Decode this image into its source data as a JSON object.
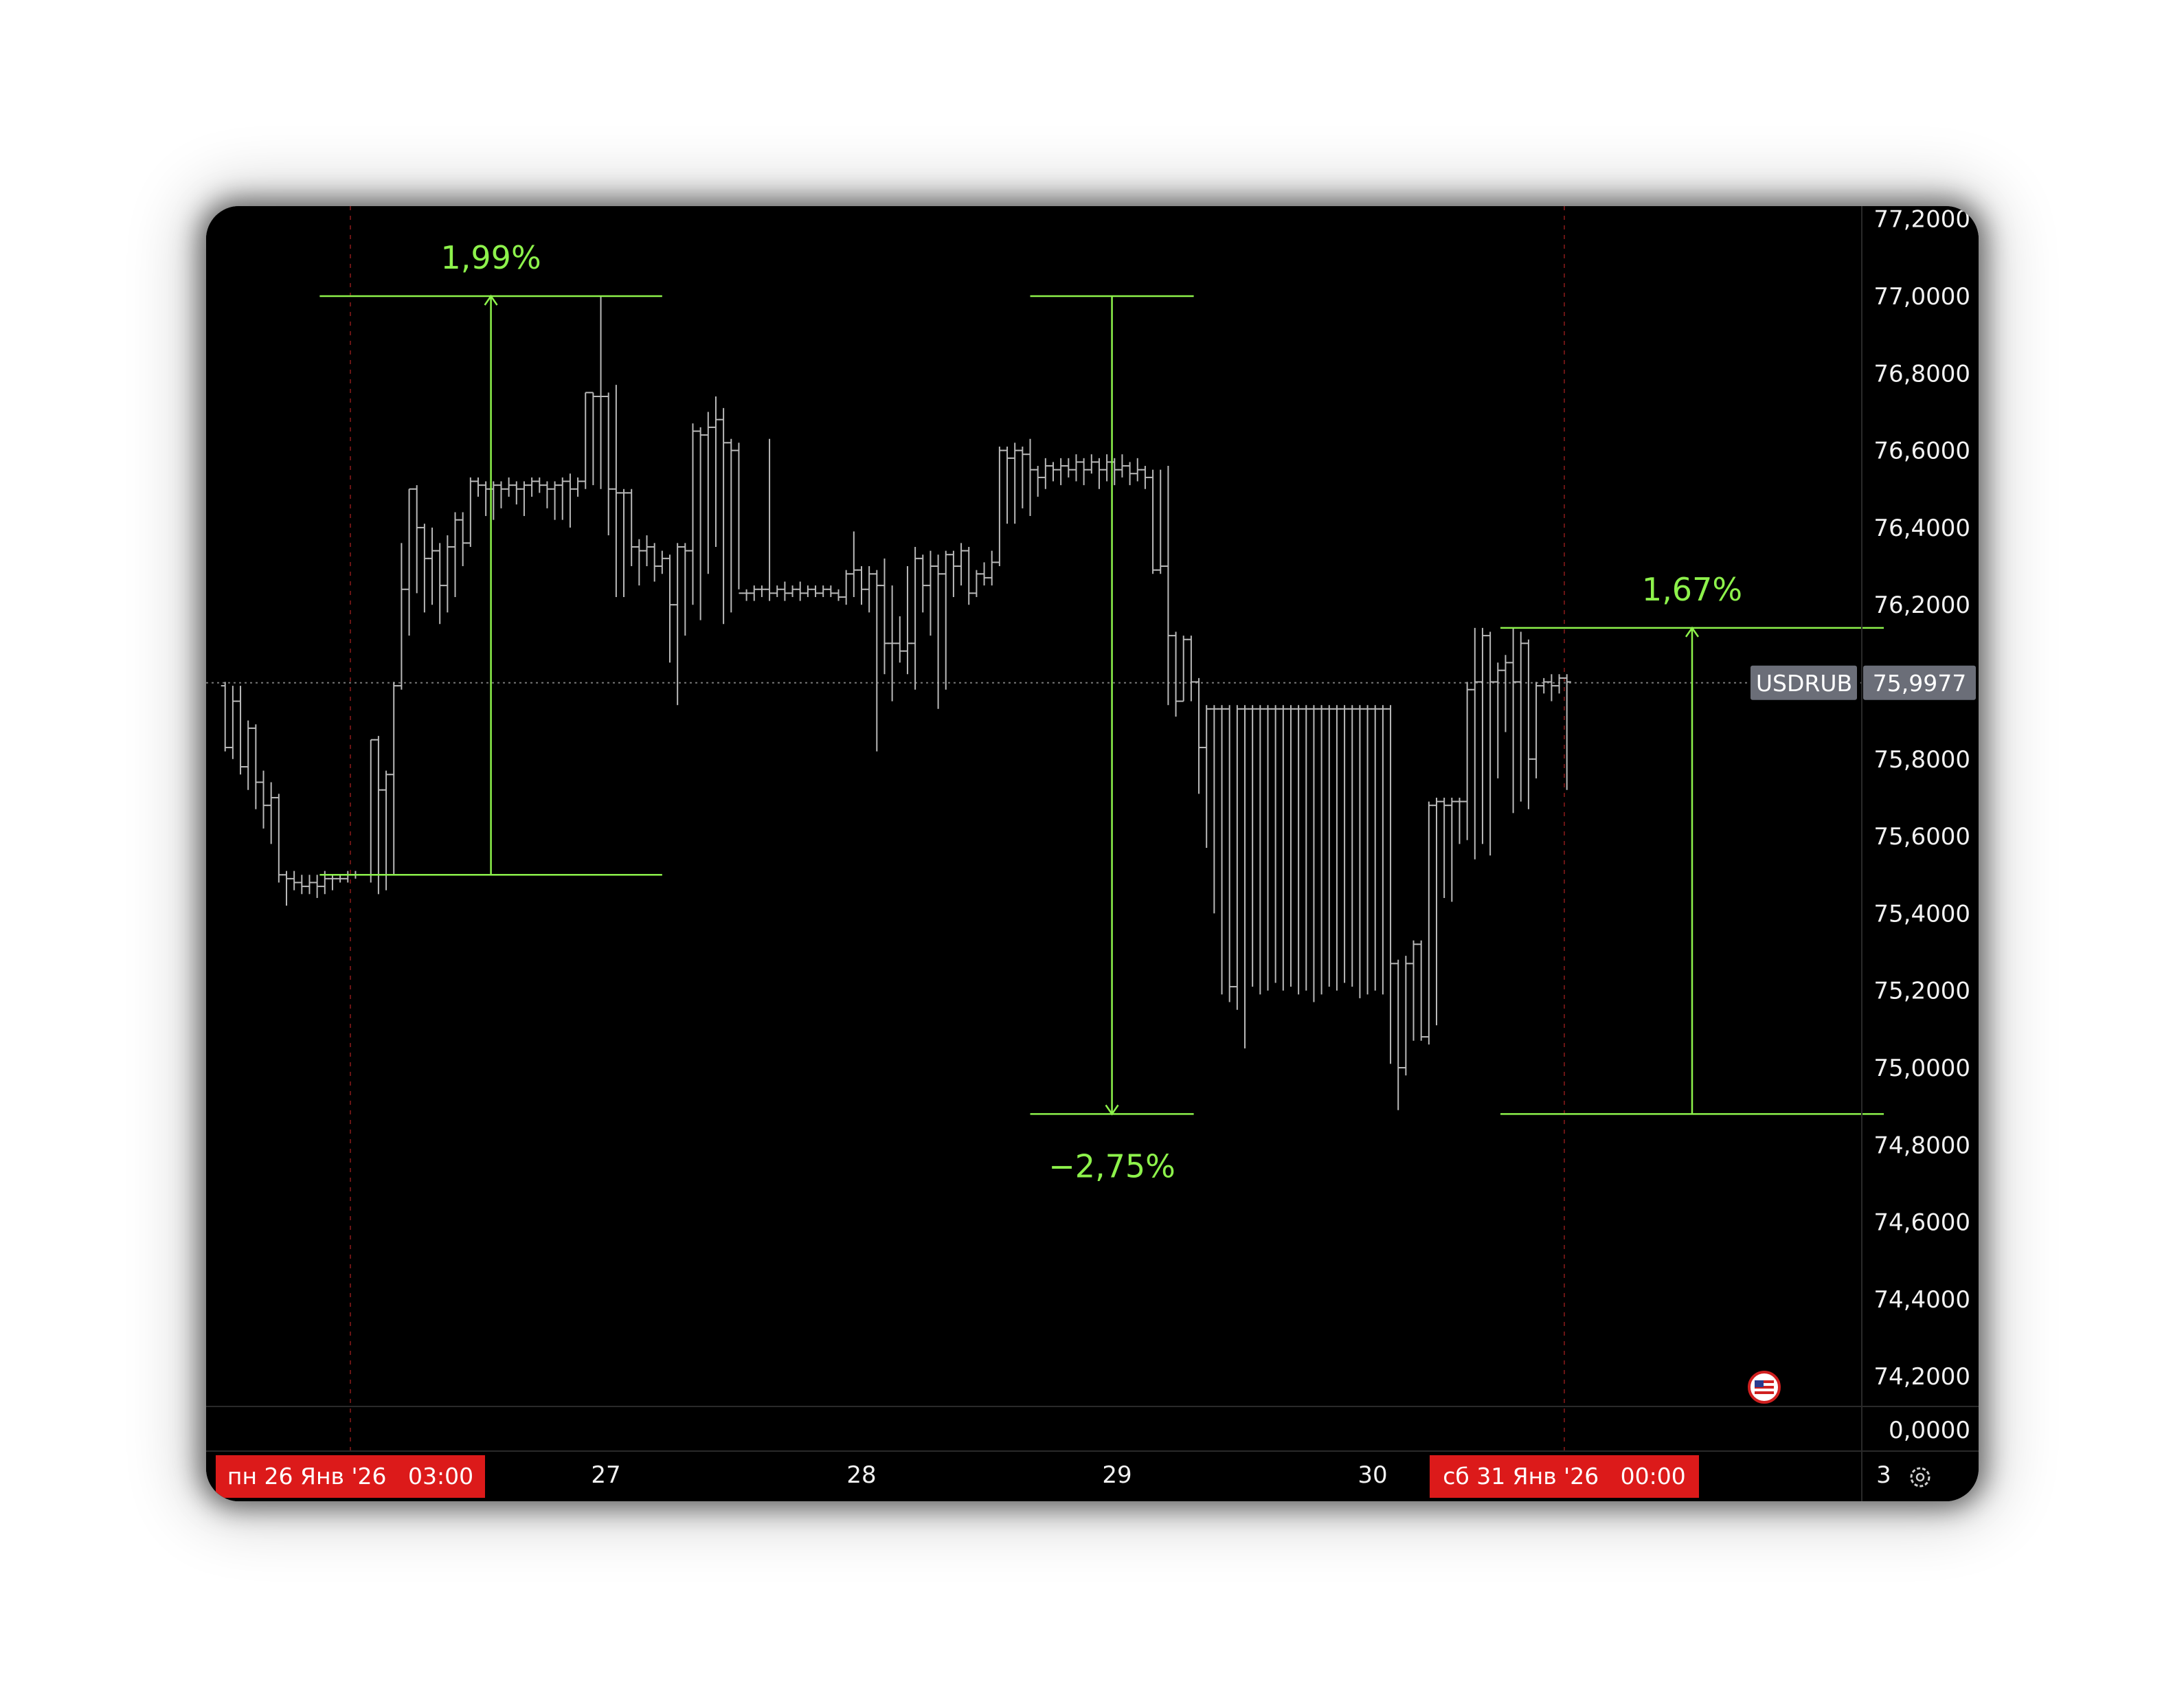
{
  "chart_data": {
    "type": "ohlc",
    "symbol": "USDRUB",
    "last_price": "75,9977",
    "last_price_value": 75.9977,
    "ylim": [
      74.05,
      77.22
    ],
    "y_ticks": [
      "77,2000",
      "77,0000",
      "76,8000",
      "76,6000",
      "76,4000",
      "76,2000",
      "76,0000",
      "75,8000",
      "75,6000",
      "75,4000",
      "75,2000",
      "75,0000",
      "74,8000",
      "74,6000",
      "74,4000",
      "74,2000"
    ],
    "y_tick_values": [
      77.2,
      77.0,
      76.8,
      76.6,
      76.4,
      76.2,
      76.0,
      75.8,
      75.6,
      75.4,
      75.2,
      75.0,
      74.8,
      74.6,
      74.4,
      74.2
    ],
    "volume_label": "0,0000",
    "x_ticks": [
      {
        "label": "27",
        "t": 1.0
      },
      {
        "label": "28",
        "t": 2.0
      },
      {
        "label": "29",
        "t": 3.0
      },
      {
        "label": "30",
        "t": 4.0
      },
      {
        "label": "3",
        "t": 6.0
      }
    ],
    "xlim": [
      -0.51,
      6.0
    ],
    "session_markers": [
      {
        "label": "пн 26 Янв '26   03:00",
        "t": 0.0
      },
      {
        "label": "сб 31 Янв '26   00:00",
        "t": 4.75
      }
    ],
    "measurements": [
      {
        "label": "1,99%",
        "t_from": -0.12,
        "t_to": 1.22,
        "p_from": 75.5,
        "p_to": 77.0,
        "arrow": "up",
        "label_pos": "above"
      },
      {
        "label": "−2,75%",
        "t_from": 2.66,
        "t_to": 3.3,
        "p_from": 77.0,
        "p_to": 74.88,
        "arrow": "down",
        "label_pos": "below"
      },
      {
        "label": "1,67%",
        "t_from": 4.5,
        "t_to": 6.0,
        "p_from": 74.88,
        "p_to": 76.14,
        "arrow": "up",
        "label_pos": "above"
      }
    ],
    "bars": [
      [
        -0.49,
        75.99,
        76.0,
        75.82,
        75.83
      ],
      [
        -0.46,
        75.83,
        75.99,
        75.8,
        75.95
      ],
      [
        -0.43,
        75.95,
        75.99,
        75.76,
        75.78
      ],
      [
        -0.4,
        75.78,
        75.9,
        75.72,
        75.88
      ],
      [
        -0.37,
        75.88,
        75.89,
        75.67,
        75.74
      ],
      [
        -0.34,
        75.74,
        75.77,
        75.62,
        75.68
      ],
      [
        -0.31,
        75.68,
        75.74,
        75.58,
        75.7
      ],
      [
        -0.28,
        75.7,
        75.71,
        75.48,
        75.5
      ],
      [
        -0.25,
        75.5,
        75.51,
        75.42,
        75.49
      ],
      [
        -0.22,
        75.49,
        75.51,
        75.46,
        75.48
      ],
      [
        -0.19,
        75.48,
        75.5,
        75.45,
        75.47
      ],
      [
        -0.16,
        75.47,
        75.5,
        75.45,
        75.48
      ],
      [
        -0.13,
        75.48,
        75.5,
        75.44,
        75.47
      ],
      [
        -0.1,
        75.47,
        75.51,
        75.45,
        75.49
      ],
      [
        -0.07,
        75.49,
        75.5,
        75.46,
        75.49
      ],
      [
        -0.04,
        75.49,
        75.5,
        75.48,
        75.49
      ],
      [
        -0.01,
        75.49,
        75.51,
        75.48,
        75.5
      ],
      [
        0.02,
        75.5,
        75.51,
        75.49,
        75.5
      ],
      [
        0.05,
        75.5,
        75.5,
        75.5,
        75.5
      ],
      [
        0.08,
        75.5,
        75.85,
        75.48,
        75.85
      ],
      [
        0.11,
        75.85,
        75.86,
        75.45,
        75.72
      ],
      [
        0.14,
        75.72,
        75.77,
        75.46,
        75.76
      ],
      [
        0.17,
        75.76,
        76.0,
        75.5,
        75.99
      ],
      [
        0.2,
        75.99,
        76.36,
        75.98,
        76.24
      ],
      [
        0.23,
        76.24,
        76.5,
        76.12,
        76.5
      ],
      [
        0.26,
        76.5,
        76.51,
        76.23,
        76.4
      ],
      [
        0.29,
        76.4,
        76.41,
        76.18,
        76.32
      ],
      [
        0.32,
        76.32,
        76.4,
        76.2,
        76.34
      ],
      [
        0.35,
        76.34,
        76.36,
        76.15,
        76.25
      ],
      [
        0.38,
        76.25,
        76.38,
        76.18,
        76.35
      ],
      [
        0.41,
        76.35,
        76.44,
        76.22,
        76.42
      ],
      [
        0.44,
        76.42,
        76.44,
        76.3,
        76.36
      ],
      [
        0.47,
        76.36,
        76.53,
        76.35,
        76.52
      ],
      [
        0.5,
        76.52,
        76.53,
        76.48,
        76.51
      ],
      [
        0.53,
        76.51,
        76.52,
        76.43,
        76.5
      ],
      [
        0.56,
        76.5,
        76.52,
        76.42,
        76.51
      ],
      [
        0.59,
        76.51,
        76.52,
        76.45,
        76.5
      ],
      [
        0.62,
        76.5,
        76.53,
        76.48,
        76.51
      ],
      [
        0.65,
        76.51,
        76.52,
        76.46,
        76.5
      ],
      [
        0.68,
        76.5,
        76.52,
        76.43,
        76.51
      ],
      [
        0.71,
        76.51,
        76.53,
        76.48,
        76.52
      ],
      [
        0.74,
        76.52,
        76.53,
        76.49,
        76.51
      ],
      [
        0.77,
        76.51,
        76.52,
        76.45,
        76.5
      ],
      [
        0.8,
        76.5,
        76.52,
        76.42,
        76.51
      ],
      [
        0.83,
        76.51,
        76.53,
        76.42,
        76.52
      ],
      [
        0.86,
        76.52,
        76.54,
        76.4,
        76.5
      ],
      [
        0.89,
        76.5,
        76.53,
        76.48,
        76.52
      ],
      [
        0.92,
        76.52,
        76.75,
        76.5,
        76.75
      ],
      [
        0.95,
        76.75,
        76.75,
        76.51,
        76.74
      ],
      [
        0.98,
        76.74,
        77.0,
        76.5,
        76.74
      ],
      [
        1.01,
        76.74,
        76.75,
        76.38,
        76.5
      ],
      [
        1.04,
        76.5,
        76.77,
        76.22,
        76.49
      ],
      [
        1.07,
        76.49,
        76.5,
        76.22,
        76.49
      ],
      [
        1.1,
        76.49,
        76.5,
        76.3,
        76.35
      ],
      [
        1.13,
        76.35,
        76.37,
        76.25,
        76.34
      ],
      [
        1.16,
        76.34,
        76.38,
        76.3,
        76.35
      ],
      [
        1.19,
        76.35,
        76.36,
        76.26,
        76.3
      ],
      [
        1.22,
        76.3,
        76.34,
        76.28,
        76.32
      ],
      [
        1.25,
        76.32,
        76.33,
        76.05,
        76.2
      ],
      [
        1.28,
        76.2,
        76.36,
        75.94,
        76.35
      ],
      [
        1.31,
        76.35,
        76.36,
        76.12,
        76.34
      ],
      [
        1.34,
        76.34,
        76.67,
        76.2,
        76.65
      ],
      [
        1.37,
        76.65,
        76.66,
        76.16,
        76.64
      ],
      [
        1.4,
        76.64,
        76.7,
        76.28,
        76.66
      ],
      [
        1.43,
        76.66,
        76.74,
        76.35,
        76.68
      ],
      [
        1.46,
        76.68,
        76.71,
        76.15,
        76.62
      ],
      [
        1.49,
        76.62,
        76.63,
        76.18,
        76.6
      ],
      [
        1.52,
        76.6,
        76.62,
        76.24,
        76.23
      ],
      [
        1.55,
        76.23,
        76.24,
        76.21,
        76.23
      ],
      [
        1.58,
        76.23,
        76.25,
        76.21,
        76.24
      ],
      [
        1.61,
        76.24,
        76.25,
        76.22,
        76.24
      ],
      [
        1.64,
        76.24,
        76.63,
        76.21,
        76.23
      ],
      [
        1.67,
        76.23,
        76.25,
        76.22,
        76.24
      ],
      [
        1.7,
        76.24,
        76.26,
        76.21,
        76.23
      ],
      [
        1.73,
        76.23,
        76.25,
        76.22,
        76.24
      ],
      [
        1.76,
        76.24,
        76.26,
        76.21,
        76.23
      ],
      [
        1.79,
        76.23,
        76.25,
        76.22,
        76.24
      ],
      [
        1.82,
        76.24,
        76.25,
        76.22,
        76.23
      ],
      [
        1.85,
        76.23,
        76.25,
        76.22,
        76.24
      ],
      [
        1.88,
        76.24,
        76.25,
        76.22,
        76.23
      ],
      [
        1.91,
        76.23,
        76.24,
        76.21,
        76.22
      ],
      [
        1.94,
        76.22,
        76.29,
        76.2,
        76.28
      ],
      [
        1.97,
        76.28,
        76.39,
        76.22,
        76.29
      ],
      [
        2.0,
        76.29,
        76.3,
        76.2,
        76.24
      ],
      [
        2.03,
        76.24,
        76.3,
        76.18,
        76.28
      ],
      [
        2.06,
        76.28,
        76.29,
        75.82,
        76.25
      ],
      [
        2.09,
        76.25,
        76.32,
        76.02,
        76.1
      ],
      [
        2.12,
        76.1,
        76.25,
        75.95,
        76.1
      ],
      [
        2.15,
        76.1,
        76.17,
        76.05,
        76.08
      ],
      [
        2.18,
        76.08,
        76.3,
        76.02,
        76.1
      ],
      [
        2.21,
        76.1,
        76.35,
        75.98,
        76.32
      ],
      [
        2.24,
        76.32,
        76.33,
        76.18,
        76.25
      ],
      [
        2.27,
        76.25,
        76.34,
        76.12,
        76.3
      ],
      [
        2.3,
        76.3,
        76.33,
        75.93,
        76.28
      ],
      [
        2.33,
        76.28,
        76.34,
        75.98,
        76.33
      ],
      [
        2.36,
        76.33,
        76.34,
        76.22,
        76.3
      ],
      [
        2.39,
        76.3,
        76.36,
        76.25,
        76.34
      ],
      [
        2.42,
        76.34,
        76.35,
        76.2,
        76.23
      ],
      [
        2.45,
        76.23,
        76.29,
        76.22,
        76.28
      ],
      [
        2.48,
        76.28,
        76.31,
        76.25,
        76.27
      ],
      [
        2.51,
        76.27,
        76.34,
        76.25,
        76.31
      ],
      [
        2.54,
        76.31,
        76.61,
        76.3,
        76.6
      ],
      [
        2.57,
        76.6,
        76.61,
        76.41,
        76.58
      ],
      [
        2.6,
        76.58,
        76.62,
        76.41,
        76.6
      ],
      [
        2.63,
        76.6,
        76.61,
        76.45,
        76.59
      ],
      [
        2.66,
        76.59,
        76.63,
        76.43,
        76.55
      ],
      [
        2.69,
        76.55,
        76.56,
        76.48,
        76.53
      ],
      [
        2.72,
        76.53,
        76.58,
        76.5,
        76.56
      ],
      [
        2.75,
        76.56,
        76.57,
        76.52,
        76.55
      ],
      [
        2.78,
        76.55,
        76.58,
        76.51,
        76.56
      ],
      [
        2.81,
        76.56,
        76.58,
        76.53,
        76.55
      ],
      [
        2.84,
        76.55,
        76.59,
        76.52,
        76.57
      ],
      [
        2.87,
        76.57,
        76.58,
        76.51,
        76.55
      ],
      [
        2.9,
        76.55,
        76.59,
        76.54,
        76.57
      ],
      [
        2.93,
        76.57,
        76.58,
        76.5,
        76.55
      ],
      [
        2.96,
        76.55,
        76.59,
        76.52,
        76.57
      ],
      [
        2.99,
        76.57,
        76.58,
        76.51,
        76.55
      ],
      [
        3.02,
        76.55,
        76.59,
        76.53,
        76.56
      ],
      [
        3.05,
        76.56,
        76.57,
        76.51,
        76.54
      ],
      [
        3.08,
        76.54,
        76.58,
        76.52,
        76.55
      ],
      [
        3.11,
        76.55,
        76.56,
        76.5,
        76.53
      ],
      [
        3.14,
        76.53,
        76.55,
        76.28,
        76.29
      ],
      [
        3.17,
        76.29,
        76.55,
        76.28,
        76.3
      ],
      [
        3.2,
        76.3,
        76.56,
        75.94,
        76.12
      ],
      [
        3.23,
        76.12,
        76.13,
        75.91,
        75.95
      ],
      [
        3.26,
        75.95,
        76.12,
        75.95,
        76.11
      ],
      [
        3.29,
        76.11,
        76.12,
        75.95,
        76.0
      ],
      [
        3.32,
        76.0,
        76.01,
        75.71,
        75.83
      ],
      [
        3.35,
        75.83,
        75.94,
        75.57,
        75.93
      ],
      [
        3.38,
        75.93,
        75.94,
        75.4,
        75.93
      ],
      [
        3.41,
        75.93,
        75.94,
        75.19,
        75.93
      ],
      [
        3.44,
        75.93,
        75.94,
        75.17,
        75.21
      ],
      [
        3.47,
        75.21,
        75.94,
        75.15,
        75.93
      ],
      [
        3.5,
        75.93,
        75.94,
        75.05,
        75.93
      ],
      [
        3.53,
        75.93,
        75.94,
        75.21,
        75.93
      ],
      [
        3.56,
        75.93,
        75.94,
        75.19,
        75.93
      ],
      [
        3.59,
        75.93,
        75.94,
        75.2,
        75.93
      ],
      [
        3.62,
        75.93,
        75.94,
        75.22,
        75.93
      ],
      [
        3.65,
        75.93,
        75.94,
        75.2,
        75.93
      ],
      [
        3.68,
        75.93,
        75.94,
        75.21,
        75.93
      ],
      [
        3.71,
        75.93,
        75.94,
        75.19,
        75.93
      ],
      [
        3.74,
        75.93,
        75.94,
        75.2,
        75.93
      ],
      [
        3.77,
        75.93,
        75.94,
        75.17,
        75.93
      ],
      [
        3.8,
        75.93,
        75.94,
        75.19,
        75.93
      ],
      [
        3.83,
        75.93,
        75.94,
        75.21,
        75.93
      ],
      [
        3.86,
        75.93,
        75.94,
        75.2,
        75.93
      ],
      [
        3.89,
        75.93,
        75.94,
        75.22,
        75.93
      ],
      [
        3.92,
        75.93,
        75.94,
        75.21,
        75.93
      ],
      [
        3.95,
        75.93,
        75.94,
        75.18,
        75.93
      ],
      [
        3.98,
        75.93,
        75.94,
        75.19,
        75.93
      ],
      [
        4.01,
        75.93,
        75.94,
        75.2,
        75.93
      ],
      [
        4.04,
        75.93,
        75.94,
        75.19,
        75.93
      ],
      [
        4.07,
        75.93,
        75.94,
        75.01,
        75.27
      ],
      [
        4.1,
        75.27,
        75.28,
        74.89,
        75.0
      ],
      [
        4.13,
        75.0,
        75.29,
        74.98,
        75.27
      ],
      [
        4.16,
        75.27,
        75.33,
        75.07,
        75.32
      ],
      [
        4.19,
        75.32,
        75.33,
        75.07,
        75.08
      ],
      [
        4.22,
        75.08,
        75.69,
        75.06,
        75.68
      ],
      [
        4.25,
        75.68,
        75.7,
        75.11,
        75.69
      ],
      [
        4.28,
        75.69,
        75.7,
        75.44,
        75.68
      ],
      [
        4.31,
        75.68,
        75.7,
        75.43,
        75.69
      ],
      [
        4.34,
        75.69,
        75.7,
        75.58,
        75.69
      ],
      [
        4.37,
        75.69,
        76.0,
        75.59,
        75.98
      ],
      [
        4.4,
        75.98,
        76.14,
        75.54,
        76.0
      ],
      [
        4.43,
        76.0,
        76.14,
        75.58,
        76.12
      ],
      [
        4.46,
        76.12,
        76.13,
        75.55,
        76.0
      ],
      [
        4.49,
        76.0,
        76.05,
        75.75,
        76.03
      ],
      [
        4.52,
        76.03,
        76.07,
        75.87,
        76.05
      ],
      [
        4.55,
        76.05,
        76.14,
        75.66,
        76.0
      ],
      [
        4.58,
        76.0,
        76.13,
        75.69,
        76.1
      ],
      [
        4.61,
        76.1,
        76.11,
        75.67,
        75.8
      ],
      [
        4.64,
        75.8,
        76.0,
        75.75,
        75.99
      ],
      [
        4.67,
        75.99,
        76.01,
        75.97,
        76.0
      ],
      [
        4.7,
        76.0,
        76.02,
        75.95,
        75.99
      ],
      [
        4.73,
        75.99,
        76.02,
        75.97,
        76.01
      ],
      [
        4.76,
        76.01,
        76.02,
        75.72,
        76.0
      ]
    ]
  }
}
